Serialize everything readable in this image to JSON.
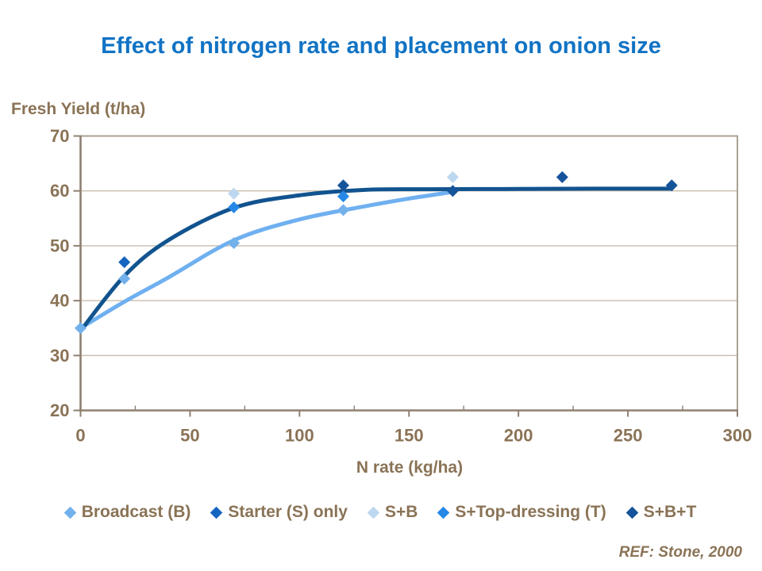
{
  "page": {
    "ref": "REF: Stone, 2000"
  },
  "colors": {
    "title": "#1173C4",
    "text_brown": "#8A7356",
    "gridline": "#C9BEAD",
    "frame": "#ABA092",
    "axis": "#8E8171",
    "background": "#FFFFFF"
  },
  "chart_data": {
    "type": "scatter",
    "title": "Effect of nitrogen rate and placement on onion size",
    "xlabel": "N rate (kg/ha)",
    "ylabel": "Fresh Yield (t/ha)",
    "xlim": [
      0,
      300
    ],
    "ylim": [
      20,
      70
    ],
    "x_ticks": [
      0,
      50,
      100,
      150,
      200,
      250,
      300
    ],
    "x_minor_tick_step": 25,
    "y_ticks": [
      20,
      30,
      40,
      50,
      60,
      70
    ],
    "grid": "horizontal-only",
    "legend_position": "bottom",
    "marker_shape": "diamond",
    "series": [
      {
        "name": "Broadcast (B)",
        "color": "#72B1EC",
        "points": [
          [
            0,
            35
          ],
          [
            20,
            44
          ],
          [
            70,
            50.5
          ],
          [
            120,
            56.5
          ]
        ]
      },
      {
        "name": "Starter (S) only",
        "color": "#1565C0",
        "points": [
          [
            20,
            47
          ]
        ]
      },
      {
        "name": "S+B",
        "color": "#BDD7F0",
        "points": [
          [
            70,
            59.5
          ],
          [
            170,
            62.5
          ]
        ]
      },
      {
        "name": "S+Top-dressing (T)",
        "color": "#2688E6",
        "points": [
          [
            70,
            57
          ],
          [
            120,
            59
          ]
        ]
      },
      {
        "name": "S+B+T",
        "color": "#15549A",
        "points": [
          [
            120,
            61
          ],
          [
            170,
            60
          ],
          [
            220,
            62.5
          ],
          [
            270,
            61
          ]
        ]
      }
    ],
    "trend_curves": [
      {
        "name": "Broadcast (B) trend",
        "color": "#6FB0F0",
        "points": [
          [
            0,
            35
          ],
          [
            20,
            39.8
          ],
          [
            40,
            44.2
          ],
          [
            70,
            51
          ],
          [
            100,
            54.8
          ],
          [
            130,
            57.2
          ],
          [
            150,
            58.6
          ],
          [
            170,
            59.8
          ]
        ]
      },
      {
        "name": "S+B+T trend",
        "color": "#11538F",
        "points": [
          [
            0,
            34.5
          ],
          [
            20,
            44.5
          ],
          [
            40,
            51
          ],
          [
            70,
            56.9
          ],
          [
            100,
            59.2
          ],
          [
            130,
            60.2
          ],
          [
            160,
            60.3
          ],
          [
            200,
            60.35
          ],
          [
            235,
            60.4
          ],
          [
            270,
            60.4
          ]
        ]
      }
    ]
  }
}
